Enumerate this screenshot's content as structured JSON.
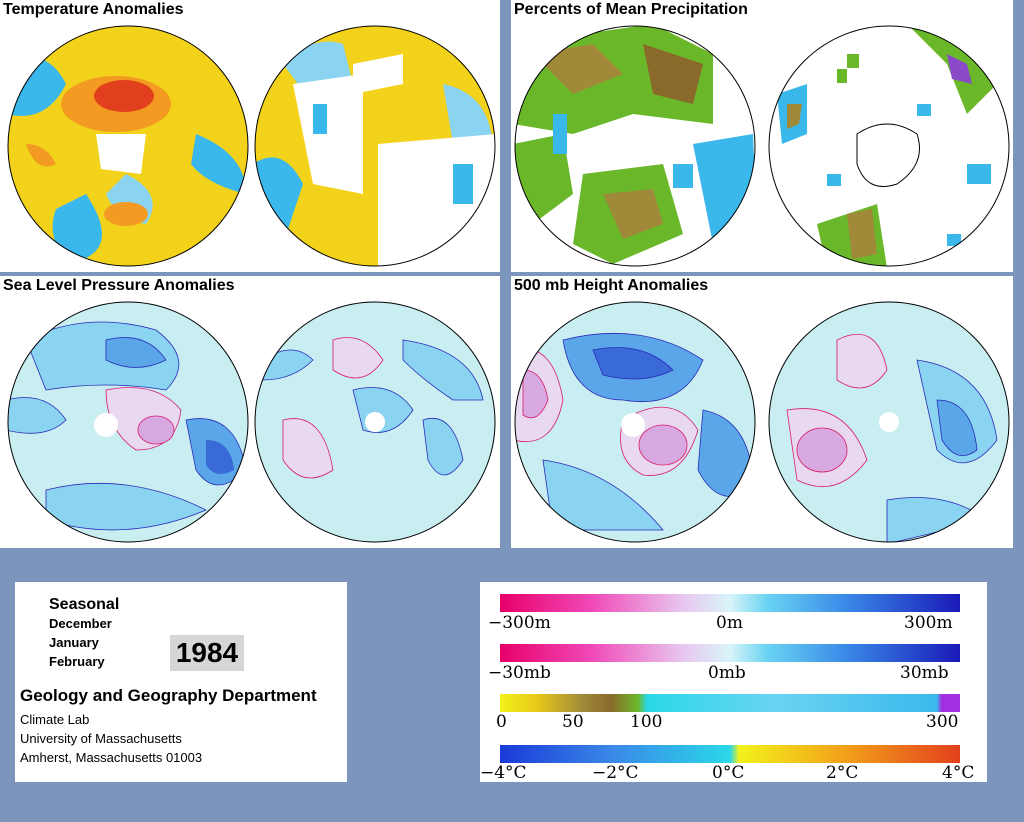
{
  "panels": {
    "temperature": {
      "title": "Temperature Anomalies"
    },
    "precipitation": {
      "title": "Percents of Mean Precipitation"
    },
    "slp": {
      "title": "Sea Level Pressure Anomalies"
    },
    "height500": {
      "title": "500 mb Height Anomalies"
    }
  },
  "info": {
    "heading": "Seasonal",
    "months": [
      "December",
      "January",
      "February"
    ],
    "year": "1984",
    "department": "Geology and Geography Department",
    "lab": "Climate Lab",
    "university": "University of Massachusetts",
    "city": "Amherst, Massachusetts 01003"
  },
  "legends": {
    "height": {
      "labels": [
        "−300m",
        "0m",
        "300m"
      ]
    },
    "pressure": {
      "labels": [
        "−30mb",
        "0mb",
        "30mb"
      ]
    },
    "precip": {
      "labels": [
        "0",
        "50",
        "100",
        "300"
      ]
    },
    "temp": {
      "labels": [
        "−4°C",
        "−2°C",
        "0°C",
        "2°C",
        "4°C"
      ]
    }
  },
  "colors": {
    "background": "#7b95bd",
    "warm": "#e2401c",
    "cool": "#3ab8ec",
    "neutral": "#c8eef2",
    "positive_contour": "#d81b6b",
    "negative_contour": "#2a2ab8"
  }
}
